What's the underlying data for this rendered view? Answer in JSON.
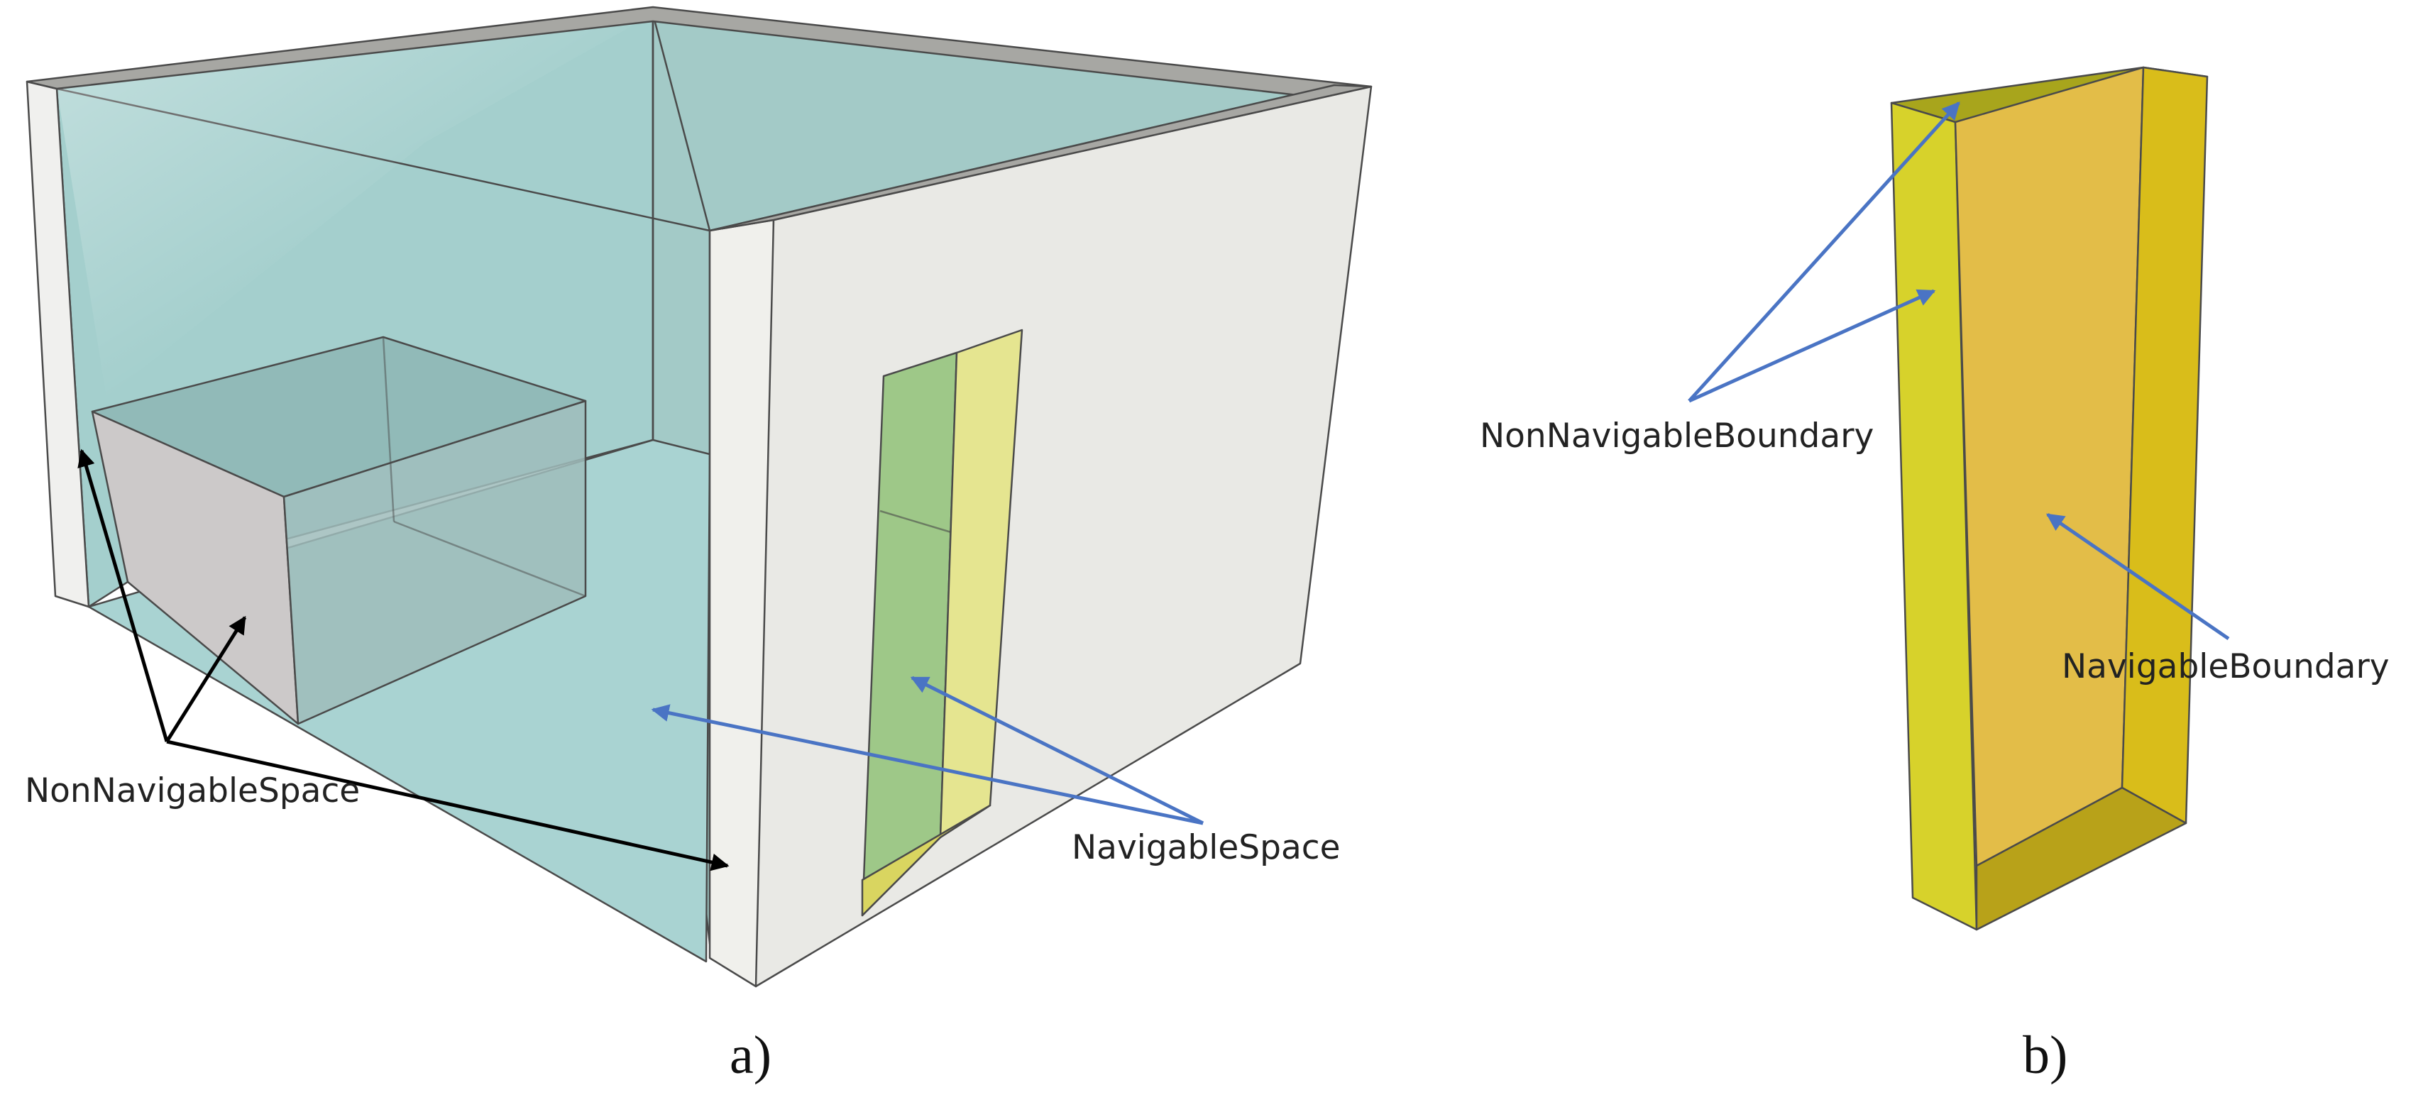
{
  "panel_a": {
    "label": "a)",
    "annotations": {
      "non_navigable_space": "NonNavigableSpace",
      "navigable_space": "NavigableSpace"
    }
  },
  "panel_b": {
    "label": "b)",
    "annotations": {
      "non_navigable_boundary": "NonNavigableBoundary",
      "navigable_boundary": "NavigableBoundary"
    }
  },
  "colors": {
    "room_space": "#a9d3d2",
    "wall": "#ebebe6",
    "wall_top": "#a7a7a3",
    "door_navigable": "#9ec888",
    "door_boundary": "#e5e590",
    "boundary_yellow": "#d9cf2a",
    "boundary_orange": "#e2bd4a",
    "blue_arrow": "#4a74c4",
    "black_arrow": "#000000"
  }
}
